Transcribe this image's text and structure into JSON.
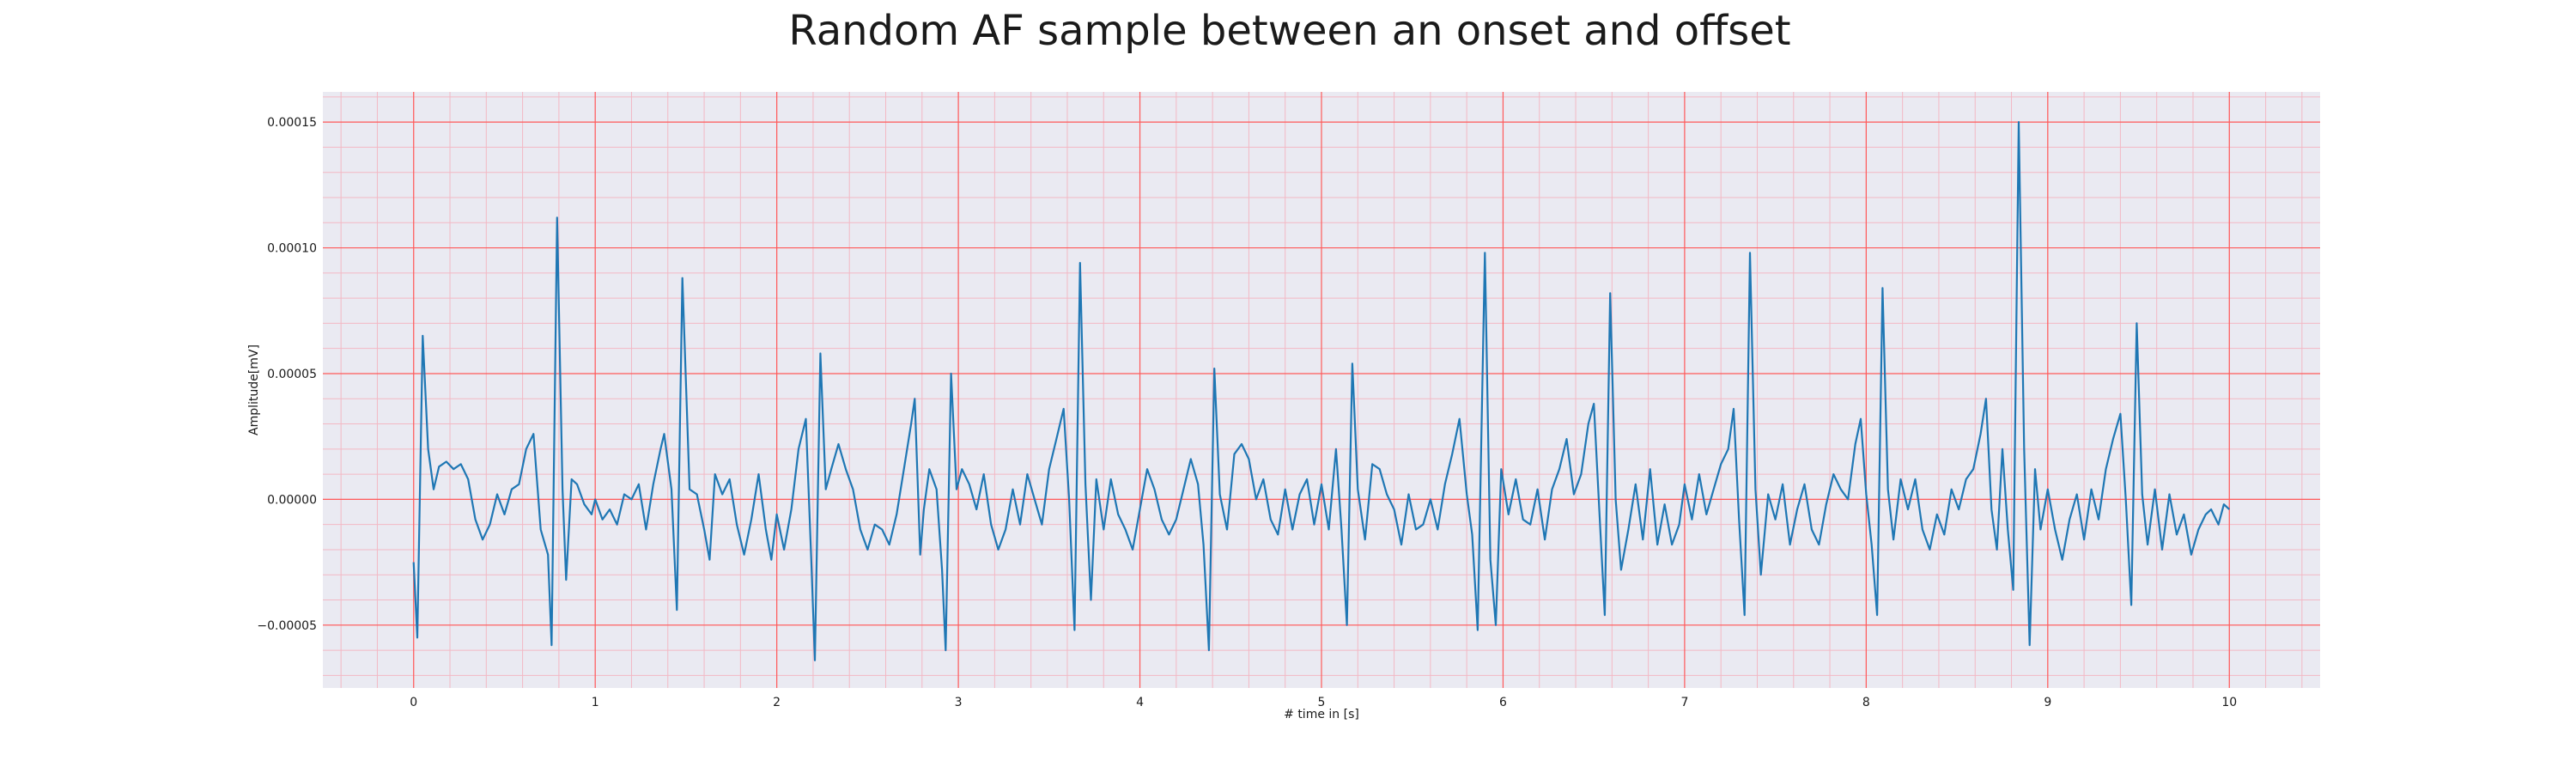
{
  "chart_data": {
    "type": "line",
    "title": "Random AF sample between an onset and offset",
    "xlabel": "# time in [s]",
    "ylabel": "Amplitude[mV]",
    "xlim": [
      -0.5,
      10.5
    ],
    "ylim": [
      -7.5e-05,
      0.000162
    ],
    "x_ticks": [
      0,
      1,
      2,
      3,
      4,
      5,
      6,
      7,
      8,
      9,
      10
    ],
    "x_tick_labels": [
      "0",
      "1",
      "2",
      "3",
      "4",
      "5",
      "6",
      "7",
      "8",
      "9",
      "10"
    ],
    "y_ticks": [
      -5e-05,
      0,
      5e-05,
      0.0001,
      0.00015
    ],
    "y_tick_labels": [
      "−0.00005",
      "0.00000",
      "0.00005",
      "0.00010",
      "0.00015"
    ],
    "grid": true,
    "colors": {
      "background": "#eaeaf2",
      "major_grid": "#ff5a5a",
      "minor_grid": "#f3b8c4",
      "line": "#1f77b4"
    },
    "series": [
      {
        "values": [
          [
            0.0,
            -2.5e-05
          ],
          [
            0.02,
            -5.5e-05
          ],
          [
            0.05,
            6.5e-05
          ],
          [
            0.08,
            2e-05
          ],
          [
            0.11,
            4e-06
          ],
          [
            0.14,
            1.3e-05
          ],
          [
            0.18,
            1.5e-05
          ],
          [
            0.22,
            1.2e-05
          ],
          [
            0.26,
            1.4e-05
          ],
          [
            0.3,
            8e-06
          ],
          [
            0.34,
            -8e-06
          ],
          [
            0.38,
            -1.6e-05
          ],
          [
            0.42,
            -1e-05
          ],
          [
            0.46,
            2e-06
          ],
          [
            0.5,
            -6e-06
          ],
          [
            0.54,
            4e-06
          ],
          [
            0.58,
            6e-06
          ],
          [
            0.62,
            2e-05
          ],
          [
            0.66,
            2.6e-05
          ],
          [
            0.7,
            -1.2e-05
          ],
          [
            0.74,
            -2.2e-05
          ],
          [
            0.76,
            -5.8e-05
          ],
          [
            0.79,
            0.000112
          ],
          [
            0.82,
            4e-06
          ],
          [
            0.84,
            -3.2e-05
          ],
          [
            0.87,
            8e-06
          ],
          [
            0.9,
            6e-06
          ],
          [
            0.94,
            -2e-06
          ],
          [
            0.98,
            -6e-06
          ],
          [
            1.0,
            0.0
          ],
          [
            1.04,
            -8e-06
          ],
          [
            1.08,
            -4e-06
          ],
          [
            1.12,
            -1e-05
          ],
          [
            1.16,
            2e-06
          ],
          [
            1.2,
            0.0
          ],
          [
            1.24,
            6e-06
          ],
          [
            1.28,
            -1.2e-05
          ],
          [
            1.32,
            6e-06
          ],
          [
            1.36,
            2e-05
          ],
          [
            1.38,
            2.6e-05
          ],
          [
            1.42,
            4e-06
          ],
          [
            1.45,
            -4.4e-05
          ],
          [
            1.48,
            8.8e-05
          ],
          [
            1.52,
            4e-06
          ],
          [
            1.56,
            2e-06
          ],
          [
            1.6,
            -1.2e-05
          ],
          [
            1.63,
            -2.4e-05
          ],
          [
            1.66,
            1e-05
          ],
          [
            1.7,
            2e-06
          ],
          [
            1.74,
            8e-06
          ],
          [
            1.78,
            -1e-05
          ],
          [
            1.82,
            -2.2e-05
          ],
          [
            1.86,
            -8e-06
          ],
          [
            1.9,
            1e-05
          ],
          [
            1.94,
            -1.2e-05
          ],
          [
            1.97,
            -2.4e-05
          ],
          [
            2.0,
            -6e-06
          ],
          [
            2.04,
            -2e-05
          ],
          [
            2.08,
            -4e-06
          ],
          [
            2.12,
            2e-05
          ],
          [
            2.16,
            3.2e-05
          ],
          [
            2.19,
            -2.4e-05
          ],
          [
            2.21,
            -6.4e-05
          ],
          [
            2.24,
            5.8e-05
          ],
          [
            2.27,
            4e-06
          ],
          [
            2.3,
            1.2e-05
          ],
          [
            2.34,
            2.2e-05
          ],
          [
            2.38,
            1.2e-05
          ],
          [
            2.42,
            4e-06
          ],
          [
            2.46,
            -1.2e-05
          ],
          [
            2.5,
            -2e-05
          ],
          [
            2.54,
            -1e-05
          ],
          [
            2.58,
            -1.2e-05
          ],
          [
            2.62,
            -1.8e-05
          ],
          [
            2.66,
            -6e-06
          ],
          [
            2.7,
            1.2e-05
          ],
          [
            2.74,
            3e-05
          ],
          [
            2.76,
            4e-05
          ],
          [
            2.79,
            -2.2e-05
          ],
          [
            2.81,
            -4e-06
          ],
          [
            2.84,
            1.2e-05
          ],
          [
            2.88,
            4e-06
          ],
          [
            2.91,
            -2.8e-05
          ],
          [
            2.93,
            -6e-05
          ],
          [
            2.96,
            5e-05
          ],
          [
            2.99,
            4e-06
          ],
          [
            3.02,
            1.2e-05
          ],
          [
            3.06,
            6e-06
          ],
          [
            3.1,
            -4e-06
          ],
          [
            3.14,
            1e-05
          ],
          [
            3.18,
            -1e-05
          ],
          [
            3.22,
            -2e-05
          ],
          [
            3.26,
            -1.2e-05
          ],
          [
            3.3,
            4e-06
          ],
          [
            3.34,
            -1e-05
          ],
          [
            3.38,
            1e-05
          ],
          [
            3.42,
            0.0
          ],
          [
            3.46,
            -1e-05
          ],
          [
            3.5,
            1.2e-05
          ],
          [
            3.54,
            2.4e-05
          ],
          [
            3.58,
            3.6e-05
          ],
          [
            3.61,
            0.0
          ],
          [
            3.64,
            -5.2e-05
          ],
          [
            3.67,
            9.4e-05
          ],
          [
            3.7,
            6e-06
          ],
          [
            3.73,
            -4e-05
          ],
          [
            3.76,
            8e-06
          ],
          [
            3.8,
            -1.2e-05
          ],
          [
            3.84,
            8e-06
          ],
          [
            3.88,
            -6e-06
          ],
          [
            3.92,
            -1.2e-05
          ],
          [
            3.96,
            -2e-05
          ],
          [
            4.0,
            -4e-06
          ],
          [
            4.04,
            1.2e-05
          ],
          [
            4.08,
            4e-06
          ],
          [
            4.12,
            -8e-06
          ],
          [
            4.16,
            -1.4e-05
          ],
          [
            4.2,
            -8e-06
          ],
          [
            4.24,
            4e-06
          ],
          [
            4.28,
            1.6e-05
          ],
          [
            4.32,
            6e-06
          ],
          [
            4.35,
            -1.8e-05
          ],
          [
            4.38,
            -6e-05
          ],
          [
            4.41,
            5.2e-05
          ],
          [
            4.44,
            2e-06
          ],
          [
            4.48,
            -1.2e-05
          ],
          [
            4.52,
            1.8e-05
          ],
          [
            4.56,
            2.2e-05
          ],
          [
            4.6,
            1.6e-05
          ],
          [
            4.64,
            0.0
          ],
          [
            4.68,
            8e-06
          ],
          [
            4.72,
            -8e-06
          ],
          [
            4.76,
            -1.4e-05
          ],
          [
            4.8,
            4e-06
          ],
          [
            4.84,
            -1.2e-05
          ],
          [
            4.88,
            2e-06
          ],
          [
            4.92,
            8e-06
          ],
          [
            4.96,
            -1e-05
          ],
          [
            5.0,
            6e-06
          ],
          [
            5.04,
            -1.2e-05
          ],
          [
            5.08,
            2e-05
          ],
          [
            5.11,
            -1.2e-05
          ],
          [
            5.14,
            -5e-05
          ],
          [
            5.17,
            5.4e-05
          ],
          [
            5.2,
            4e-06
          ],
          [
            5.24,
            -1.6e-05
          ],
          [
            5.28,
            1.4e-05
          ],
          [
            5.32,
            1.2e-05
          ],
          [
            5.36,
            2e-06
          ],
          [
            5.4,
            -4e-06
          ],
          [
            5.44,
            -1.8e-05
          ],
          [
            5.48,
            2e-06
          ],
          [
            5.52,
            -1.2e-05
          ],
          [
            5.56,
            -1e-05
          ],
          [
            5.6,
            0.0
          ],
          [
            5.64,
            -1.2e-05
          ],
          [
            5.68,
            6e-06
          ],
          [
            5.72,
            1.8e-05
          ],
          [
            5.76,
            3.2e-05
          ],
          [
            5.8,
            2e-06
          ],
          [
            5.83,
            -1.4e-05
          ],
          [
            5.86,
            -5.2e-05
          ],
          [
            5.9,
            9.8e-05
          ],
          [
            5.93,
            -2.4e-05
          ],
          [
            5.96,
            -5e-05
          ],
          [
            5.99,
            1.2e-05
          ],
          [
            6.03,
            -6e-06
          ],
          [
            6.07,
            8e-06
          ],
          [
            6.11,
            -8e-06
          ],
          [
            6.15,
            -1e-05
          ],
          [
            6.19,
            4e-06
          ],
          [
            6.23,
            -1.6e-05
          ],
          [
            6.27,
            4e-06
          ],
          [
            6.31,
            1.2e-05
          ],
          [
            6.35,
            2.4e-05
          ],
          [
            6.39,
            2e-06
          ],
          [
            6.43,
            1e-05
          ],
          [
            6.47,
            3e-05
          ],
          [
            6.5,
            3.8e-05
          ],
          [
            6.53,
            -4e-06
          ],
          [
            6.56,
            -4.6e-05
          ],
          [
            6.59,
            8.2e-05
          ],
          [
            6.62,
            0.0
          ],
          [
            6.65,
            -2.8e-05
          ],
          [
            6.69,
            -1.2e-05
          ],
          [
            6.73,
            6e-06
          ],
          [
            6.77,
            -1.6e-05
          ],
          [
            6.81,
            1.2e-05
          ],
          [
            6.85,
            -1.8e-05
          ],
          [
            6.89,
            -2e-06
          ],
          [
            6.93,
            -1.8e-05
          ],
          [
            6.97,
            -1e-05
          ],
          [
            7.0,
            6e-06
          ],
          [
            7.04,
            -8e-06
          ],
          [
            7.08,
            1e-05
          ],
          [
            7.12,
            -6e-06
          ],
          [
            7.16,
            4e-06
          ],
          [
            7.2,
            1.4e-05
          ],
          [
            7.24,
            2e-05
          ],
          [
            7.27,
            3.6e-05
          ],
          [
            7.3,
            -8e-06
          ],
          [
            7.33,
            -4.6e-05
          ],
          [
            7.36,
            9.8e-05
          ],
          [
            7.39,
            4e-06
          ],
          [
            7.42,
            -3e-05
          ],
          [
            7.46,
            2e-06
          ],
          [
            7.5,
            -8e-06
          ],
          [
            7.54,
            6e-06
          ],
          [
            7.58,
            -1.8e-05
          ],
          [
            7.62,
            -4e-06
          ],
          [
            7.66,
            6e-06
          ],
          [
            7.7,
            -1.2e-05
          ],
          [
            7.74,
            -1.8e-05
          ],
          [
            7.78,
            -2e-06
          ],
          [
            7.82,
            1e-05
          ],
          [
            7.86,
            4e-06
          ],
          [
            7.9,
            0.0
          ],
          [
            7.94,
            2.2e-05
          ],
          [
            7.97,
            3.2e-05
          ],
          [
            8.0,
            2e-06
          ],
          [
            8.03,
            -1.8e-05
          ],
          [
            8.06,
            -4.6e-05
          ],
          [
            8.09,
            8.4e-05
          ],
          [
            8.12,
            4e-06
          ],
          [
            8.15,
            -1.6e-05
          ],
          [
            8.19,
            8e-06
          ],
          [
            8.23,
            -4e-06
          ],
          [
            8.27,
            8e-06
          ],
          [
            8.31,
            -1.2e-05
          ],
          [
            8.35,
            -2e-05
          ],
          [
            8.39,
            -6e-06
          ],
          [
            8.43,
            -1.4e-05
          ],
          [
            8.47,
            4e-06
          ],
          [
            8.51,
            -4e-06
          ],
          [
            8.55,
            8e-06
          ],
          [
            8.59,
            1.2e-05
          ],
          [
            8.63,
            2.6e-05
          ],
          [
            8.66,
            4e-05
          ],
          [
            8.69,
            -4e-06
          ],
          [
            8.72,
            -2e-05
          ],
          [
            8.75,
            2e-05
          ],
          [
            8.78,
            -1.2e-05
          ],
          [
            8.81,
            -3.6e-05
          ],
          [
            8.84,
            0.00015
          ],
          [
            8.87,
            2e-05
          ],
          [
            8.9,
            -5.8e-05
          ],
          [
            8.93,
            1.2e-05
          ],
          [
            8.96,
            -1.2e-05
          ],
          [
            9.0,
            4e-06
          ],
          [
            9.04,
            -1.2e-05
          ],
          [
            9.08,
            -2.4e-05
          ],
          [
            9.12,
            -8e-06
          ],
          [
            9.16,
            2e-06
          ],
          [
            9.2,
            -1.6e-05
          ],
          [
            9.24,
            4e-06
          ],
          [
            9.28,
            -8e-06
          ],
          [
            9.32,
            1.2e-05
          ],
          [
            9.36,
            2.4e-05
          ],
          [
            9.4,
            3.4e-05
          ],
          [
            9.43,
            0.0
          ],
          [
            9.46,
            -4.2e-05
          ],
          [
            9.49,
            7e-05
          ],
          [
            9.52,
            2e-06
          ],
          [
            9.55,
            -1.8e-05
          ],
          [
            9.59,
            4e-06
          ],
          [
            9.63,
            -2e-05
          ],
          [
            9.67,
            2e-06
          ],
          [
            9.71,
            -1.4e-05
          ],
          [
            9.75,
            -6e-06
          ],
          [
            9.79,
            -2.2e-05
          ],
          [
            9.83,
            -1.2e-05
          ],
          [
            9.87,
            -6e-06
          ],
          [
            9.9,
            -4e-06
          ],
          [
            9.94,
            -1e-05
          ],
          [
            9.97,
            -2e-06
          ],
          [
            10.0,
            -4e-06
          ]
        ]
      }
    ]
  }
}
